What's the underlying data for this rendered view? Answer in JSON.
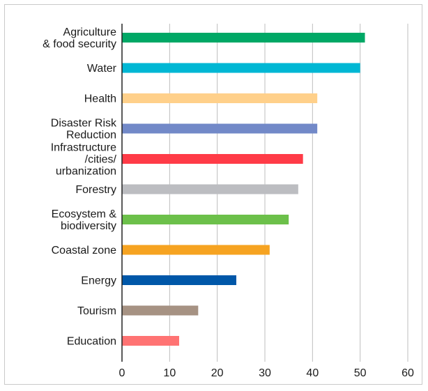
{
  "chart_data": {
    "type": "bar",
    "orientation": "horizontal",
    "categories": [
      [
        "Agriculture",
        "& food security"
      ],
      [
        "Water"
      ],
      [
        "Health"
      ],
      [
        "Disaster Risk",
        "Reduction"
      ],
      [
        "Infrastructure",
        "/cities/",
        "urbanization"
      ],
      [
        "Forestry"
      ],
      [
        "Ecosystem &",
        "biodiversity"
      ],
      [
        "Coastal zone"
      ],
      [
        "Energy"
      ],
      [
        "Tourism"
      ],
      [
        "Education"
      ]
    ],
    "values": [
      51,
      50,
      41,
      41,
      38,
      37,
      35,
      31,
      24,
      16,
      12
    ],
    "colors": [
      "#00a866",
      "#00b7d4",
      "#ffd08a",
      "#7289c8",
      "#ff3b47",
      "#bcbdc1",
      "#6cc04a",
      "#f6a321",
      "#0057a8",
      "#a69283",
      "#ff7373"
    ],
    "xlim": [
      0,
      60
    ],
    "xticks": [
      "0",
      "10",
      "20",
      "30",
      "40",
      "50",
      "60"
    ],
    "grid": true,
    "axis_color": "#222222",
    "grid_color": "#bdbdbd"
  }
}
